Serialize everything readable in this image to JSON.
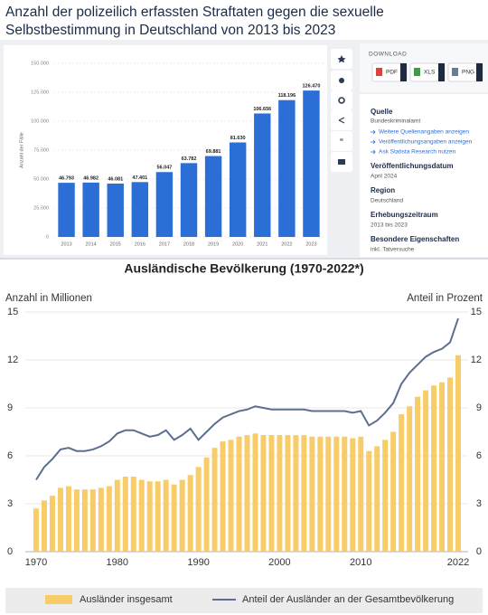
{
  "chart_data": [
    {
      "type": "bar",
      "title": "Anzahl der polizeilich erfassten Straftaten gegen die sexuelle Selbstbestimmung in Deutschland von 2013 bis 2023",
      "ylabel": "Anzahl der Fälle",
      "categories": [
        "2013",
        "2014",
        "2015",
        "2016",
        "2017",
        "2018",
        "2019",
        "2020",
        "2021",
        "2022",
        "2023"
      ],
      "values": [
        46793,
        46982,
        46081,
        47401,
        56047,
        63782,
        69881,
        81630,
        106656,
        118196,
        126470
      ],
      "value_labels": [
        "46.793",
        "46.982",
        "46.081",
        "47.401",
        "56.047",
        "63.782",
        "69.881",
        "81.630",
        "106.656",
        "118.196",
        "126.470"
      ],
      "color": "#2b6fd6",
      "ylim": [
        0,
        150000
      ],
      "yticks": [
        0,
        {
          "value": 25000,
          "label": "25.000"
        },
        {
          "value": 50000,
          "label": "50.000"
        },
        {
          "value": 75000,
          "label": "75.000"
        },
        {
          "value": 100000,
          "label": "100.000"
        },
        {
          "value": 125000,
          "label": "125.000"
        },
        {
          "value": 150000,
          "label": "150.000"
        }
      ],
      "grid": true
    },
    {
      "type": "combo",
      "title": "Ausländische Bevölkerung (1970-2022*)",
      "ylabel": "Anzahl in Millionen",
      "y2label": "Anteil in Prozent",
      "x": [
        1970,
        1971,
        1972,
        1973,
        1974,
        1975,
        1976,
        1977,
        1978,
        1979,
        1980,
        1981,
        1982,
        1983,
        1984,
        1985,
        1986,
        1987,
        1988,
        1989,
        1990,
        1991,
        1992,
        1993,
        1994,
        1995,
        1996,
        1997,
        1998,
        1999,
        2000,
        2001,
        2002,
        2003,
        2004,
        2005,
        2006,
        2007,
        2008,
        2009,
        2010,
        2011,
        2012,
        2013,
        2014,
        2015,
        2016,
        2017,
        2018,
        2019,
        2020,
        2021,
        2022
      ],
      "xlim": [
        1969.5,
        2022.5
      ],
      "xticks": [
        1970,
        1980,
        1990,
        2000,
        2010,
        2022
      ],
      "ylim": [
        0,
        15
      ],
      "yticks": [
        0,
        3,
        6,
        9,
        12,
        15
      ],
      "y2lim": [
        0,
        15
      ],
      "y2ticks": [
        0,
        3,
        6,
        9,
        12,
        15
      ],
      "grid": true,
      "legend": "bottom",
      "series": [
        {
          "name": "Ausländer insgesamt",
          "type": "bar",
          "color": "#f8cd69",
          "values": [
            2.7,
            3.2,
            3.5,
            4.0,
            4.1,
            3.9,
            3.9,
            3.9,
            4.0,
            4.1,
            4.5,
            4.7,
            4.7,
            4.5,
            4.4,
            4.4,
            4.5,
            4.2,
            4.5,
            4.8,
            5.3,
            5.9,
            6.5,
            6.9,
            7.0,
            7.2,
            7.3,
            7.4,
            7.3,
            7.3,
            7.3,
            7.3,
            7.3,
            7.3,
            7.2,
            7.2,
            7.2,
            7.2,
            7.2,
            7.1,
            7.2,
            6.3,
            6.6,
            7.0,
            7.5,
            8.6,
            9.1,
            9.7,
            10.1,
            10.4,
            10.6,
            10.9,
            12.3
          ]
        },
        {
          "name": "Anteil der Ausländer an der Gesamtbevölkerung",
          "type": "line",
          "axis": "y2",
          "color": "#5b6f8f",
          "values": [
            4.5,
            5.3,
            5.8,
            6.4,
            6.5,
            6.3,
            6.3,
            6.4,
            6.6,
            6.9,
            7.4,
            7.6,
            7.6,
            7.4,
            7.2,
            7.3,
            7.6,
            7.0,
            7.3,
            7.7,
            7.0,
            7.5,
            8.0,
            8.4,
            8.6,
            8.8,
            8.9,
            9.1,
            9.0,
            8.9,
            8.9,
            8.9,
            8.9,
            8.9,
            8.8,
            8.8,
            8.8,
            8.8,
            8.8,
            8.7,
            8.8,
            7.9,
            8.2,
            8.7,
            9.3,
            10.5,
            11.2,
            11.7,
            12.2,
            12.5,
            12.7,
            13.1,
            14.6
          ]
        }
      ]
    }
  ],
  "sidebar": {
    "download": {
      "heading": "DOWNLOAD",
      "buttons": [
        "PDF",
        "XLS",
        "PNG"
      ]
    },
    "source": {
      "heading": "Quelle",
      "text": "Bundeskriminalamt",
      "links": [
        "Weitere Quellenangaben anzeigen",
        "Veröffentlichungsangaben anzeigen",
        "Ask Statista Research nutzen"
      ]
    },
    "fields": [
      {
        "heading": "Veröffentlichungsdatum",
        "text": "April 2024"
      },
      {
        "heading": "Region",
        "text": "Deutschland"
      },
      {
        "heading": "Erhebungszeitraum",
        "text": "2013 bis 2023"
      },
      {
        "heading": "Besondere Eigenschaften",
        "text": "inkl. Tatversuche"
      }
    ]
  }
}
